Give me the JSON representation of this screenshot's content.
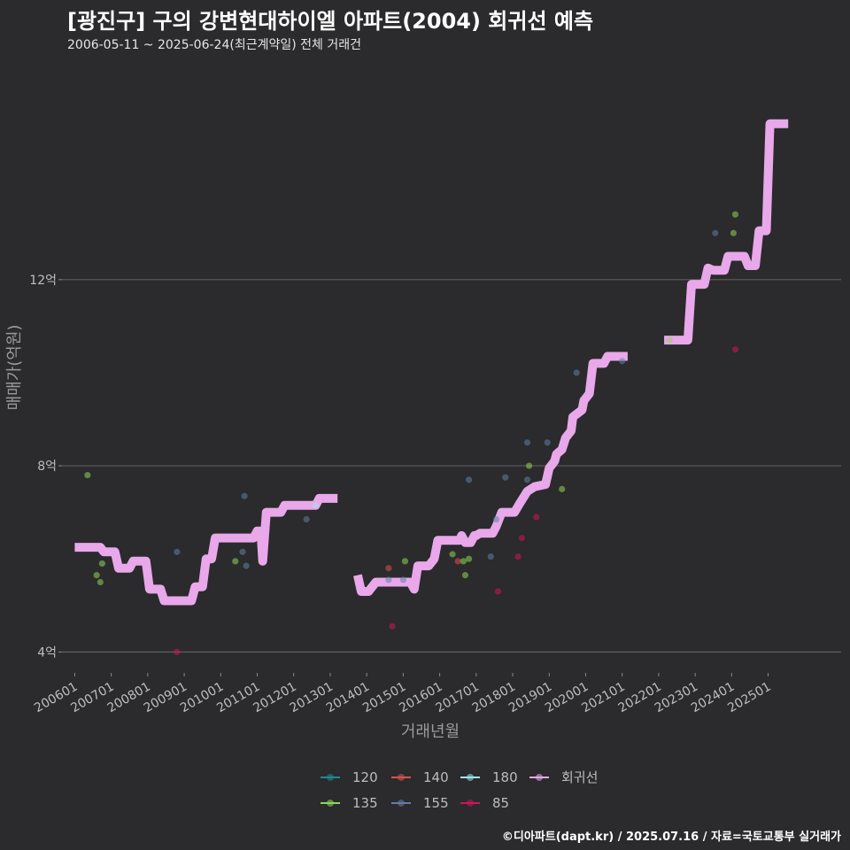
{
  "header": {
    "title": "[광진구] 구의 강변현대하이엘 아파트(2004) 회귀선 예측",
    "subtitle": "2006-05-11 ~ 2025-06-24(최근계약일) 전체 거래건"
  },
  "caption": "©디아파트(dapt.kr) / 2025.07.16 / 자료=국토교통부 실거래가",
  "chart_data": {
    "type": "line",
    "xlabel": "거래년월",
    "ylabel": "매매가(억원)",
    "x_ticks": [
      "200601",
      "200701",
      "200801",
      "200901",
      "201001",
      "201101",
      "201201",
      "201301",
      "201401",
      "201501",
      "201601",
      "201701",
      "201801",
      "201901",
      "202001",
      "202101",
      "202201",
      "202301",
      "202401",
      "202501"
    ],
    "y_ticks": [
      {
        "value": 4,
        "label": "4억"
      },
      {
        "value": 8,
        "label": "8억"
      },
      {
        "value": 12,
        "label": "12억"
      }
    ],
    "xlim": [
      2005.65,
      2027.0
    ],
    "ylim": [
      3.55,
      16.6
    ],
    "colors": {
      "120": "#1f8b93",
      "135": "#8ed65a",
      "140": "#d9534f",
      "155": "#5f7fa8",
      "180": "#9ee6ef",
      "85": "#d1145a",
      "회귀선": "#e8a8ea"
    },
    "legend": [
      {
        "key": "120",
        "label": "120"
      },
      {
        "key": "140",
        "label": "140"
      },
      {
        "key": "180",
        "label": "180"
      },
      {
        "key": "회귀선",
        "label": "회귀선"
      },
      {
        "key": "135",
        "label": "135"
      },
      {
        "key": "155",
        "label": "155"
      },
      {
        "key": "85",
        "label": "85"
      }
    ],
    "scatter": [
      {
        "area": "135",
        "x": 2006.35,
        "y": 7.8
      },
      {
        "area": "135",
        "x": 2006.6,
        "y": 5.65
      },
      {
        "area": "135",
        "x": 2006.75,
        "y": 5.9
      },
      {
        "area": "135",
        "x": 2006.7,
        "y": 5.5
      },
      {
        "area": "85",
        "x": 2008.8,
        "y": 4.0
      },
      {
        "area": "155",
        "x": 2008.8,
        "y": 6.15
      },
      {
        "area": "135",
        "x": 2010.4,
        "y": 5.95
      },
      {
        "area": "155",
        "x": 2010.6,
        "y": 6.15
      },
      {
        "area": "155",
        "x": 2010.7,
        "y": 5.85
      },
      {
        "area": "155",
        "x": 2010.65,
        "y": 7.35
      },
      {
        "area": "155",
        "x": 2012.35,
        "y": 6.85
      },
      {
        "area": "180",
        "x": 2012.6,
        "y": 7.15
      },
      {
        "area": "140",
        "x": 2014.6,
        "y": 5.8
      },
      {
        "area": "85",
        "x": 2014.7,
        "y": 4.55
      },
      {
        "area": "155",
        "x": 2014.6,
        "y": 5.55
      },
      {
        "area": "135",
        "x": 2015.05,
        "y": 5.95
      },
      {
        "area": "155",
        "x": 2015.0,
        "y": 5.55
      },
      {
        "area": "135",
        "x": 2016.35,
        "y": 6.1
      },
      {
        "area": "140",
        "x": 2016.5,
        "y": 5.95
      },
      {
        "area": "135",
        "x": 2016.65,
        "y": 5.95
      },
      {
        "area": "135",
        "x": 2016.7,
        "y": 5.65
      },
      {
        "area": "135",
        "x": 2016.8,
        "y": 6.0
      },
      {
        "area": "155",
        "x": 2016.8,
        "y": 7.7
      },
      {
        "area": "155",
        "x": 2017.4,
        "y": 6.05
      },
      {
        "area": "85",
        "x": 2017.6,
        "y": 5.3
      },
      {
        "area": "155",
        "x": 2017.55,
        "y": 6.85
      },
      {
        "area": "155",
        "x": 2017.8,
        "y": 7.75
      },
      {
        "area": "85",
        "x": 2018.15,
        "y": 6.05
      },
      {
        "area": "85",
        "x": 2018.25,
        "y": 6.45
      },
      {
        "area": "155",
        "x": 2018.4,
        "y": 8.5
      },
      {
        "area": "155",
        "x": 2018.4,
        "y": 7.7
      },
      {
        "area": "135",
        "x": 2018.45,
        "y": 8.0
      },
      {
        "area": "85",
        "x": 2018.65,
        "y": 6.9
      },
      {
        "area": "155",
        "x": 2018.95,
        "y": 8.5
      },
      {
        "area": "135",
        "x": 2019.35,
        "y": 7.5
      },
      {
        "area": "155",
        "x": 2019.75,
        "y": 10.0
      },
      {
        "area": "155",
        "x": 2021.0,
        "y": 10.25
      },
      {
        "area": "135",
        "x": 2022.3,
        "y": 10.7
      },
      {
        "area": "155",
        "x": 2023.55,
        "y": 13.0
      },
      {
        "area": "135",
        "x": 2024.05,
        "y": 13.0
      },
      {
        "area": "135",
        "x": 2024.1,
        "y": 13.4
      },
      {
        "area": "85",
        "x": 2024.1,
        "y": 10.5
      }
    ],
    "regression": [
      [
        [
          2006.0,
          6.25
        ],
        [
          2006.7,
          6.25
        ],
        [
          2006.8,
          6.15
        ],
        [
          2007.1,
          6.15
        ],
        [
          2007.2,
          5.8
        ],
        [
          2007.5,
          5.8
        ],
        [
          2007.6,
          5.95
        ],
        [
          2007.95,
          5.95
        ],
        [
          2008.05,
          5.35
        ],
        [
          2008.35,
          5.35
        ],
        [
          2008.45,
          5.1
        ],
        [
          2009.2,
          5.1
        ],
        [
          2009.3,
          5.4
        ],
        [
          2009.5,
          5.4
        ],
        [
          2009.6,
          6.0
        ],
        [
          2009.75,
          6.0
        ],
        [
          2009.85,
          6.45
        ],
        [
          2010.9,
          6.45
        ],
        [
          2011.0,
          6.6
        ],
        [
          2011.1,
          6.6
        ],
        [
          2011.15,
          5.95
        ],
        [
          2011.25,
          7.0
        ],
        [
          2011.65,
          7.0
        ],
        [
          2011.75,
          7.15
        ],
        [
          2012.6,
          7.15
        ],
        [
          2012.7,
          7.3
        ],
        [
          2013.2,
          7.3
        ]
      ],
      [
        [
          2013.75,
          5.65
        ],
        [
          2013.85,
          5.3
        ],
        [
          2014.05,
          5.3
        ],
        [
          2014.25,
          5.5
        ],
        [
          2015.2,
          5.5
        ],
        [
          2015.3,
          5.35
        ],
        [
          2015.4,
          5.85
        ],
        [
          2015.7,
          5.85
        ],
        [
          2015.85,
          6.0
        ],
        [
          2015.95,
          6.4
        ],
        [
          2016.55,
          6.4
        ],
        [
          2016.6,
          6.5
        ],
        [
          2016.7,
          6.35
        ],
        [
          2016.85,
          6.35
        ],
        [
          2016.95,
          6.5
        ],
        [
          2017.0,
          6.5
        ],
        [
          2017.1,
          6.55
        ],
        [
          2017.45,
          6.55
        ],
        [
          2017.55,
          6.7
        ],
        [
          2017.7,
          7.0
        ],
        [
          2018.05,
          7.0
        ],
        [
          2018.2,
          7.2
        ],
        [
          2018.4,
          7.45
        ],
        [
          2018.6,
          7.55
        ],
        [
          2018.9,
          7.6
        ],
        [
          2019.0,
          7.95
        ],
        [
          2019.15,
          8.1
        ],
        [
          2019.2,
          8.25
        ],
        [
          2019.35,
          8.35
        ],
        [
          2019.45,
          8.6
        ],
        [
          2019.6,
          8.75
        ],
        [
          2019.65,
          9.05
        ],
        [
          2019.9,
          9.2
        ],
        [
          2019.95,
          9.4
        ],
        [
          2020.1,
          9.55
        ],
        [
          2020.2,
          10.2
        ],
        [
          2020.5,
          10.2
        ],
        [
          2020.6,
          10.35
        ],
        [
          2021.15,
          10.35
        ]
      ],
      [
        [
          2022.15,
          10.7
        ],
        [
          2022.8,
          10.7
        ],
        [
          2022.9,
          11.9
        ],
        [
          2023.25,
          11.9
        ],
        [
          2023.35,
          12.25
        ],
        [
          2023.5,
          12.2
        ],
        [
          2023.8,
          12.2
        ],
        [
          2023.9,
          12.5
        ],
        [
          2024.35,
          12.5
        ],
        [
          2024.45,
          12.3
        ],
        [
          2024.65,
          12.3
        ],
        [
          2024.75,
          13.05
        ],
        [
          2024.95,
          13.05
        ],
        [
          2025.05,
          15.35
        ],
        [
          2025.55,
          15.35
        ]
      ]
    ]
  }
}
